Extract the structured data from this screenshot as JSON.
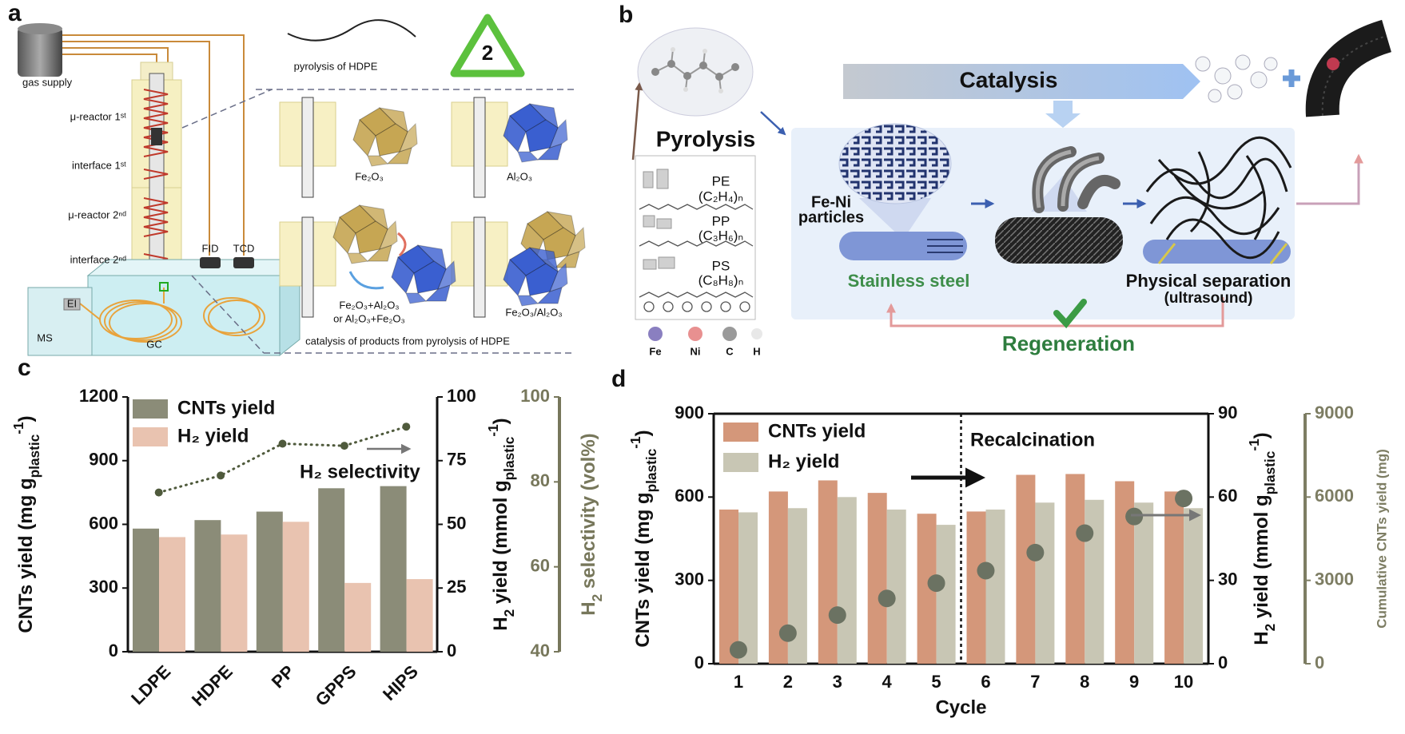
{
  "panel_labels": [
    "a",
    "b",
    "c",
    "d"
  ],
  "panel_a": {
    "gas_supply": "gas supply",
    "reactor_1": "μ-reactor 1ˢᵗ",
    "interface_1": "interface 1ˢᵗ",
    "reactor_2": "μ-reactor 2ⁿᵈ",
    "interface_2": "interface 2ⁿᵈ",
    "fid": "FID",
    "tcd": "TCD",
    "ei": "EI",
    "ms": "MS",
    "gc": "GC",
    "pyrolysis": "pyrolysis of HDPE",
    "recycle_number": "2",
    "fe2o3": "Fe₂O₃",
    "al2o3": "Al₂O₃",
    "mixed": [
      "Fe₂O₃+Al₂O₃",
      "or Al₂O₃+Fe₂O₃"
    ],
    "layered": "Fe₂O₃/Al₂O₃",
    "catalysis": "catalysis of products from pyrolysis of HDPE"
  },
  "panel_b": {
    "pyrolysis": "Pyrolysis",
    "plastics": [
      {
        "name": "PE",
        "formula": "(C₂H₄)ₙ"
      },
      {
        "name": "PP",
        "formula": "(C₃H₆)ₙ"
      },
      {
        "name": "PS",
        "formula": "(C₈H₈)ₙ"
      }
    ],
    "elements": [
      "Fe",
      "Ni",
      "C",
      "H"
    ],
    "catalysis": "Catalysis",
    "particles": [
      "Fe-Ni",
      "particles"
    ],
    "support": "Stainless steel",
    "separation": [
      "Physical separation",
      "(ultrasound)"
    ],
    "regeneration": "Regeneration"
  },
  "chart_data": [
    {
      "type": "bar",
      "categories": [
        "LDPE",
        "HDPE",
        "PP",
        "GPPS",
        "HIPS"
      ],
      "series": [
        {
          "name": "CNTs yield",
          "color": "#8b8c78",
          "values": [
            580,
            620,
            660,
            770,
            780
          ]
        },
        {
          "name": "H₂ yield",
          "color": "#e9c3b0",
          "values": [
            45,
            46,
            51,
            27,
            28.5
          ],
          "axis": "y2"
        },
        {
          "name": "H₂ selectivity",
          "color": "#4f5a3c",
          "values": [
            77.5,
            81.5,
            89,
            88.5,
            93
          ],
          "axis": "y3",
          "type": "line"
        }
      ],
      "ylim": [
        0,
        1200
      ],
      "yticks": [
        0,
        300,
        600,
        900,
        1200
      ],
      "y2lim": [
        0,
        100
      ],
      "y2ticks": [
        0,
        25,
        50,
        75,
        100
      ],
      "y3lim": [
        40,
        100
      ],
      "y3ticks": [
        40,
        60,
        80,
        100
      ],
      "y3color": "#77775b",
      "ylabel": [
        {
          "text": "CNTs yield (mg g"
        },
        {
          "sub": "plastic"
        },
        {
          "sup": "-1"
        },
        {
          "text": ")"
        }
      ],
      "y2label": [
        {
          "text": "H"
        },
        {
          "sub": "2"
        },
        {
          "text": " yield (mmol g"
        },
        {
          "sub": "plastic"
        },
        {
          "sup": "-1"
        },
        {
          "text": ")"
        }
      ],
      "y3label": [
        {
          "text": "H"
        },
        {
          "sub": "2"
        },
        {
          "text": " selectivity (vol%)"
        }
      ]
    },
    {
      "type": "bar",
      "categories": [
        "1",
        "2",
        "3",
        "4",
        "5",
        "6",
        "7",
        "8",
        "9",
        "10"
      ],
      "series": [
        {
          "name": "CNTs yield",
          "color": "#d4977a",
          "values": [
            555,
            620,
            660,
            615,
            540,
            548,
            680,
            683,
            657,
            620
          ]
        },
        {
          "name": "H₂ yield",
          "color": "#c8c6b4",
          "values": [
            54.5,
            56,
            60,
            55.5,
            50,
            55.5,
            58,
            59,
            58,
            56
          ],
          "axis": "y2"
        },
        {
          "color": "#6b7262",
          "values": [
            500,
            1100,
            1750,
            2350,
            2900,
            3350,
            4000,
            4700,
            5300,
            5950
          ],
          "axis": "y3",
          "type": "scatter"
        }
      ],
      "ylim": [
        0,
        900
      ],
      "yticks": [
        0,
        300,
        600,
        900
      ],
      "y2lim": [
        0,
        90
      ],
      "y2ticks": [
        0,
        30,
        60,
        90
      ],
      "y3lim": [
        0,
        9000
      ],
      "y3ticks": [
        0,
        3000,
        6000,
        9000
      ],
      "y3color": "#7d7d63",
      "xlabel": "Cycle",
      "annotation": "Recalcination",
      "ylabel": [
        {
          "text": "CNTs yield (mg g"
        },
        {
          "sub": "plastic"
        },
        {
          "sup": "-1"
        },
        {
          "text": ")"
        }
      ],
      "y2label": [
        {
          "text": "H"
        },
        {
          "sub": "2"
        },
        {
          "text": " yield (mmol g"
        },
        {
          "sub": "plastic"
        },
        {
          "sup": "-1"
        },
        {
          "text": ")"
        }
      ],
      "y3label": "Cumulative CNTs yield (mg)"
    }
  ]
}
